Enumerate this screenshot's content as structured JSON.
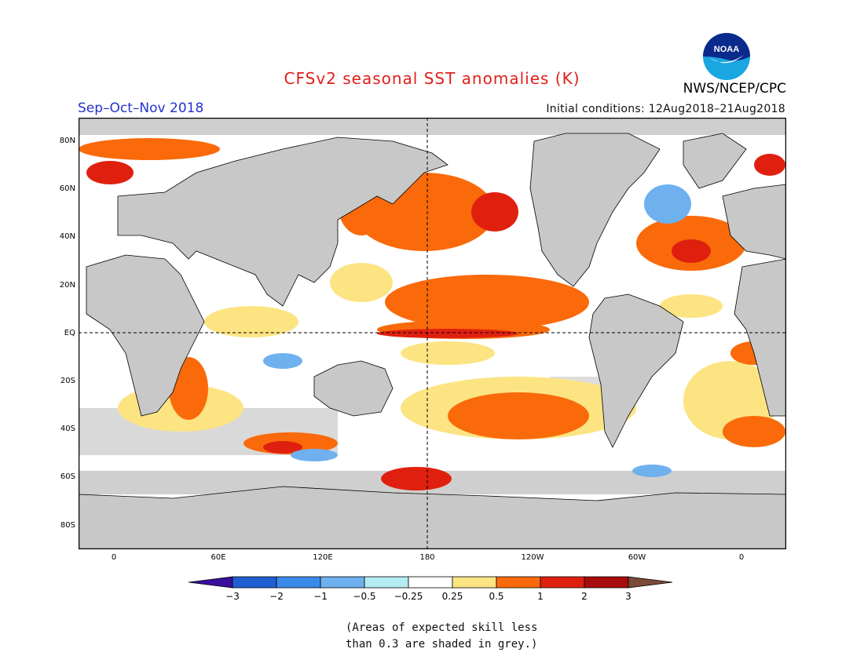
{
  "title": "CFSv2 seasonal SST anomalies (K)",
  "season": "Sep–Oct–Nov 2018",
  "initial_conditions": "Initial conditions: 12Aug2018–21Aug2018",
  "agency": "NWS/NCEP/CPC",
  "logo_text": "NOAA",
  "lat_labels": [
    "80N",
    "60N",
    "40N",
    "20N",
    "EQ",
    "20S",
    "40S",
    "60S",
    "80S"
  ],
  "lon_labels": [
    "0",
    "60E",
    "120E",
    "180",
    "120W",
    "60W",
    "0"
  ],
  "colorbar": {
    "tick_labels": [
      "−3",
      "−2",
      "−1",
      "−0.5",
      "−0.25",
      "0.25",
      "0.5",
      "1",
      "2",
      "3"
    ],
    "colors": [
      "#3a0f9e",
      "#1f5fd1",
      "#3a8be8",
      "#6fb0ef",
      "#b4ecf2",
      "#ffffff",
      "#fde483",
      "#fa6a0a",
      "#e0200f",
      "#a80d0d",
      "#7a4a36"
    ]
  },
  "colors": {
    "land": "#c8c8c8",
    "skill_grey": "#cfcfcf",
    "title": "#e0201b",
    "season": "#2233cc"
  },
  "note": [
    "(Areas of expected skill less",
    "than 0.3 are shaded in grey.)"
  ]
}
